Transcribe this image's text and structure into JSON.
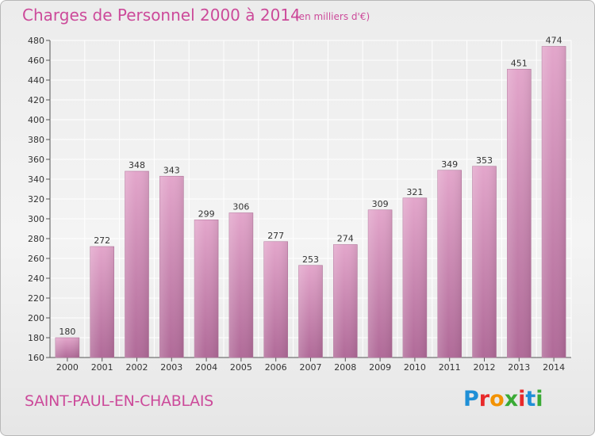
{
  "title": "Charges de Personnel 2000 à 2014",
  "subtitle": "(en milliers d'€)",
  "commune": "SAINT-PAUL-EN-CHABLAIS",
  "logo": {
    "letters": [
      "P",
      "r",
      "o",
      "x",
      "i",
      "t",
      "i"
    ],
    "colors": [
      "#1f8fd6",
      "#e8292a",
      "#f39200",
      "#3aaa35",
      "#e8292a",
      "#1f8fd6",
      "#3aaa35"
    ]
  },
  "chart_data": {
    "type": "bar",
    "categories": [
      "2000",
      "2001",
      "2002",
      "2003",
      "2004",
      "2005",
      "2006",
      "2007",
      "2008",
      "2009",
      "2010",
      "2011",
      "2012",
      "2013",
      "2014"
    ],
    "values": [
      180,
      272,
      348,
      343,
      299,
      306,
      277,
      253,
      274,
      309,
      321,
      349,
      353,
      451,
      474
    ],
    "ylim": [
      160,
      480
    ],
    "yticks": [
      160,
      180,
      200,
      220,
      240,
      260,
      280,
      300,
      320,
      340,
      360,
      380,
      400,
      420,
      440,
      460,
      480
    ],
    "grid": true,
    "data_labels": true,
    "bar_color": "#d98ebd"
  }
}
